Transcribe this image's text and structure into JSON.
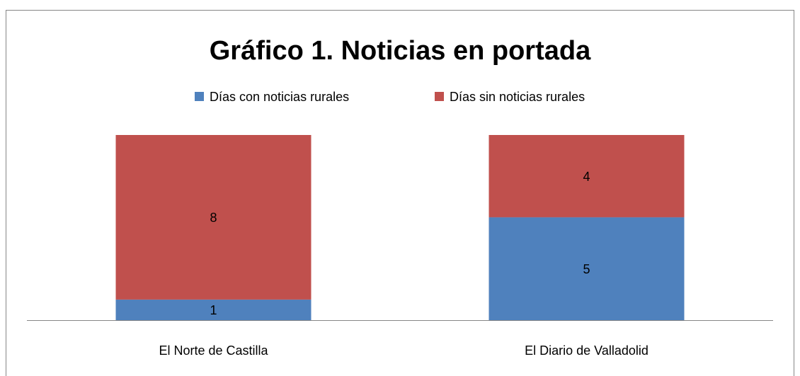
{
  "chart_data": {
    "type": "bar",
    "stacked": true,
    "title": "Gráfico 1. Noticias en portada",
    "categories": [
      "El Norte de Castilla",
      "El Diario de Valladolid"
    ],
    "series": [
      {
        "name": "Días con noticias rurales",
        "color": "#4f81bd",
        "values": [
          1,
          5
        ]
      },
      {
        "name": "Días sin noticias rurales",
        "color": "#c0504d",
        "values": [
          8,
          4
        ]
      }
    ],
    "ylim": [
      0,
      9
    ],
    "legend": "top"
  }
}
